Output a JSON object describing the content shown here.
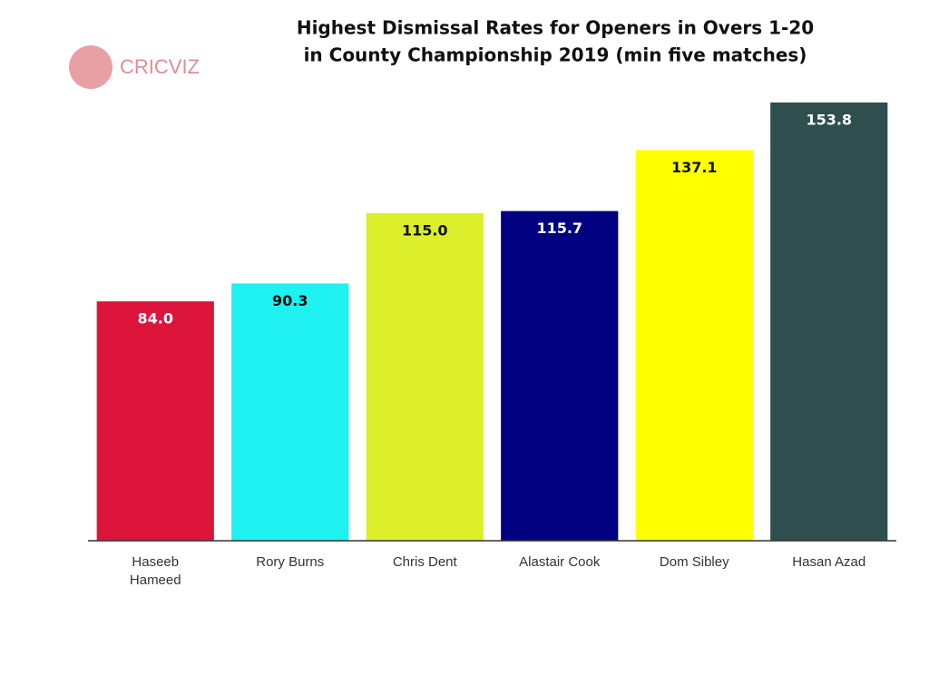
{
  "logo": "CRICVIZ",
  "chart_data": {
    "type": "bar",
    "title": [
      "Highest Dismissal Rates for Openers in Overs 1-20",
      "in County Championship 2019 (min five matches)"
    ],
    "categories": [
      [
        "Haseeb",
        "Hameed"
      ],
      "Rory Burns",
      "Chris Dent",
      "Alastair Cook",
      "Dom Sibley",
      "Hasan Azad"
    ],
    "values": [
      84,
      90.3,
      115,
      115.7,
      137.1,
      153.8
    ],
    "value_labels": [
      "84.0",
      "90.3",
      "115.0",
      "115.7",
      "137.1",
      "153.8"
    ],
    "colors": [
      "#dc143c",
      "#1ff0f0",
      "#dcef2a",
      "#000080",
      "#ffff00",
      "#2f4f4f"
    ],
    "ylim": [
      0,
      160
    ]
  }
}
